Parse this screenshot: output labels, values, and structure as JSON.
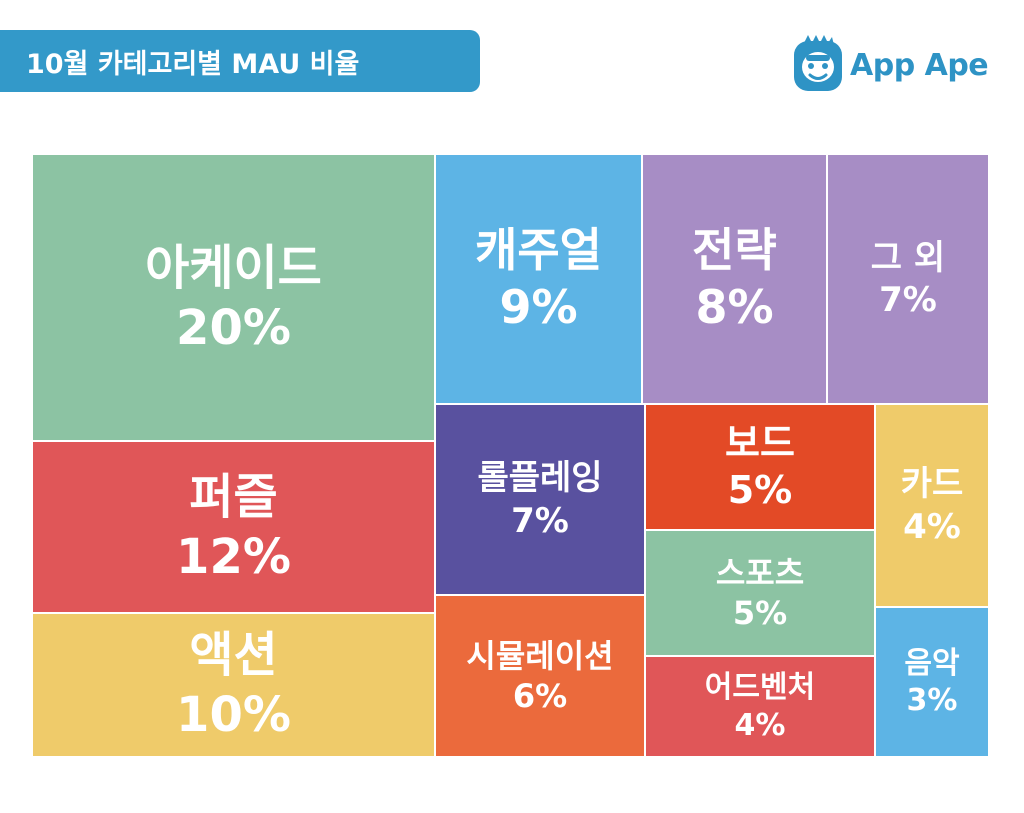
{
  "header": {
    "title": "10월 카테고리별 MAU 비율",
    "banner_color": "#3399c9"
  },
  "logo": {
    "text": "App Ape",
    "icon": "ape-face-icon",
    "color": "#2e93c5"
  },
  "chart_data": {
    "type": "treemap",
    "title": "10월 카테고리별 MAU 비율",
    "unit": "%",
    "categories": [
      "아케이드",
      "퍼즐",
      "액션",
      "캐주얼",
      "전략",
      "그 외",
      "롤플레잉",
      "보드",
      "카드",
      "스포츠",
      "시뮬레이션",
      "어드벤처",
      "음악"
    ],
    "values": [
      20,
      12,
      10,
      9,
      8,
      7,
      7,
      5,
      4,
      5,
      6,
      4,
      3
    ],
    "colors": [
      "#8cc3a3",
      "#e05658",
      "#efcb6a",
      "#5db4e5",
      "#a78dc5",
      "#a78dc5",
      "#59519f",
      "#e34a26",
      "#efcb6a",
      "#8cc3a3",
      "#eb6a3c",
      "#e05658",
      "#5db4e5"
    ],
    "value_labels": [
      "20%",
      "12%",
      "10%",
      "9%",
      "8%",
      "7%",
      "7%",
      "5%",
      "4%",
      "5%",
      "6%",
      "4%",
      "3%"
    ]
  }
}
